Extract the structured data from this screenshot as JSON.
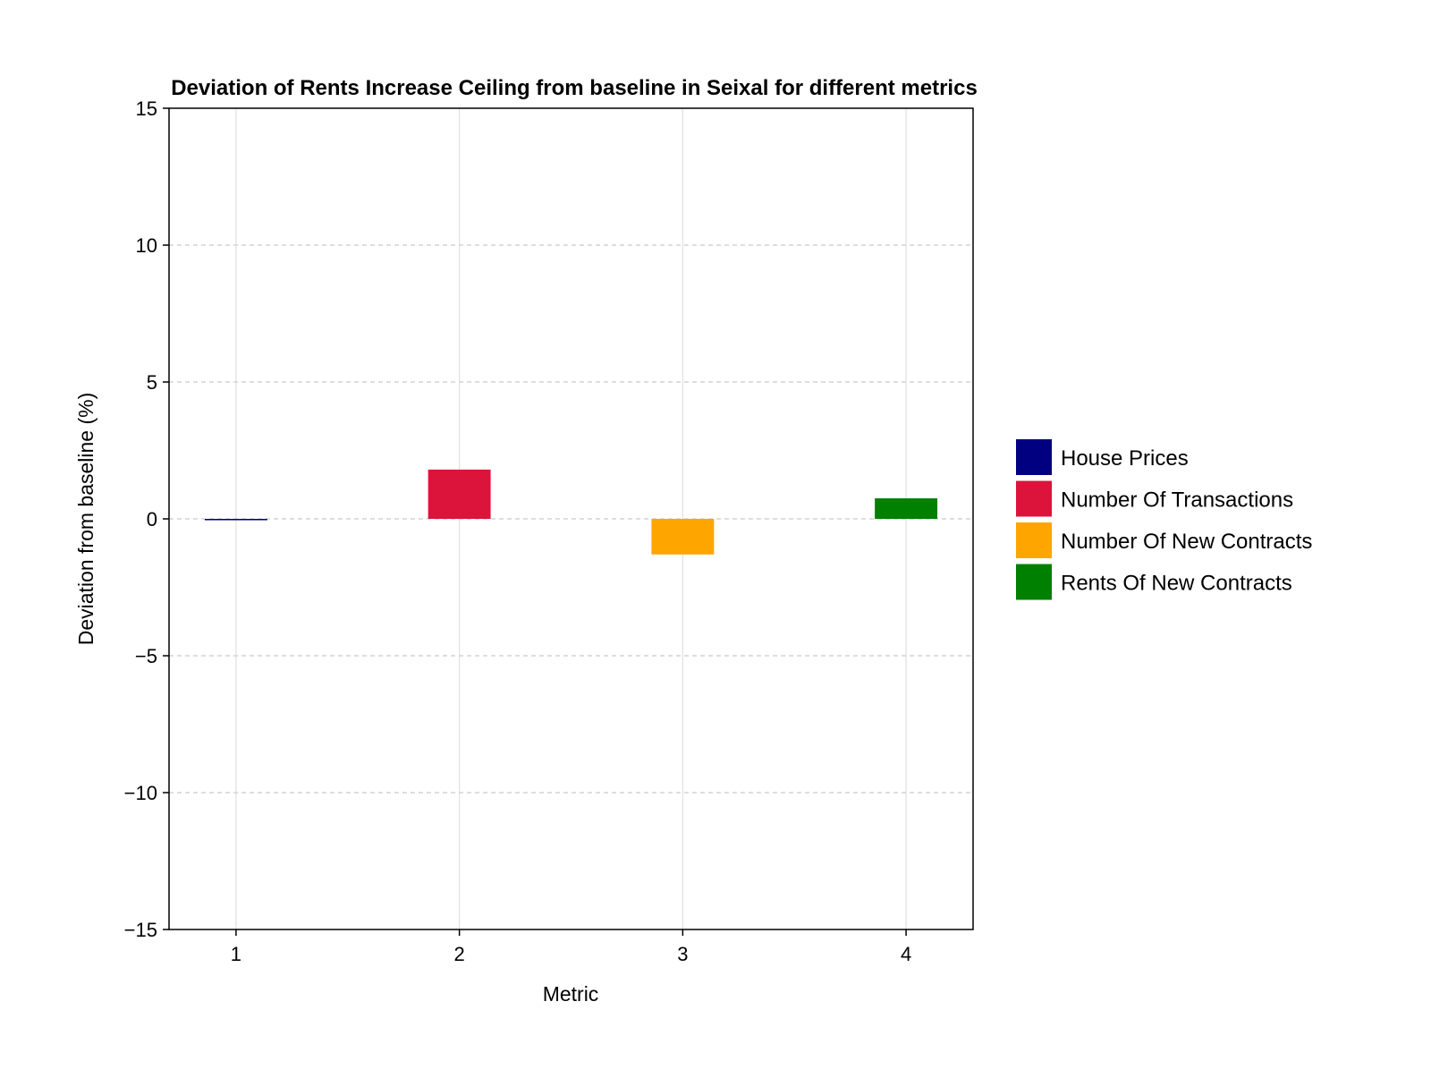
{
  "chart_data": {
    "type": "bar",
    "title": "Deviation of Rents Increase Ceiling from baseline in Seixal for different metrics",
    "xlabel": "Metric",
    "ylabel": "Deviation from baseline (%)",
    "categories": [
      "1",
      "2",
      "3",
      "4"
    ],
    "values": [
      -0.05,
      1.8,
      -1.3,
      0.75
    ],
    "ylim": [
      -15,
      15
    ],
    "yticks": [
      -15,
      -10,
      -5,
      0,
      5,
      10,
      15
    ],
    "ytick_labels": [
      "−15",
      "−10",
      "−5",
      "0",
      "5",
      "10",
      "15"
    ],
    "grid": true,
    "legend_position": "right",
    "series": [
      {
        "name": "House Prices",
        "value": -0.05,
        "color": "#000080"
      },
      {
        "name": "Number Of Transactions",
        "value": 1.8,
        "color": "#dc143c"
      },
      {
        "name": "Number Of New Contracts",
        "value": -1.3,
        "color": "#ffa500"
      },
      {
        "name": "Rents Of New Contracts",
        "value": 0.75,
        "color": "#008000"
      }
    ]
  }
}
